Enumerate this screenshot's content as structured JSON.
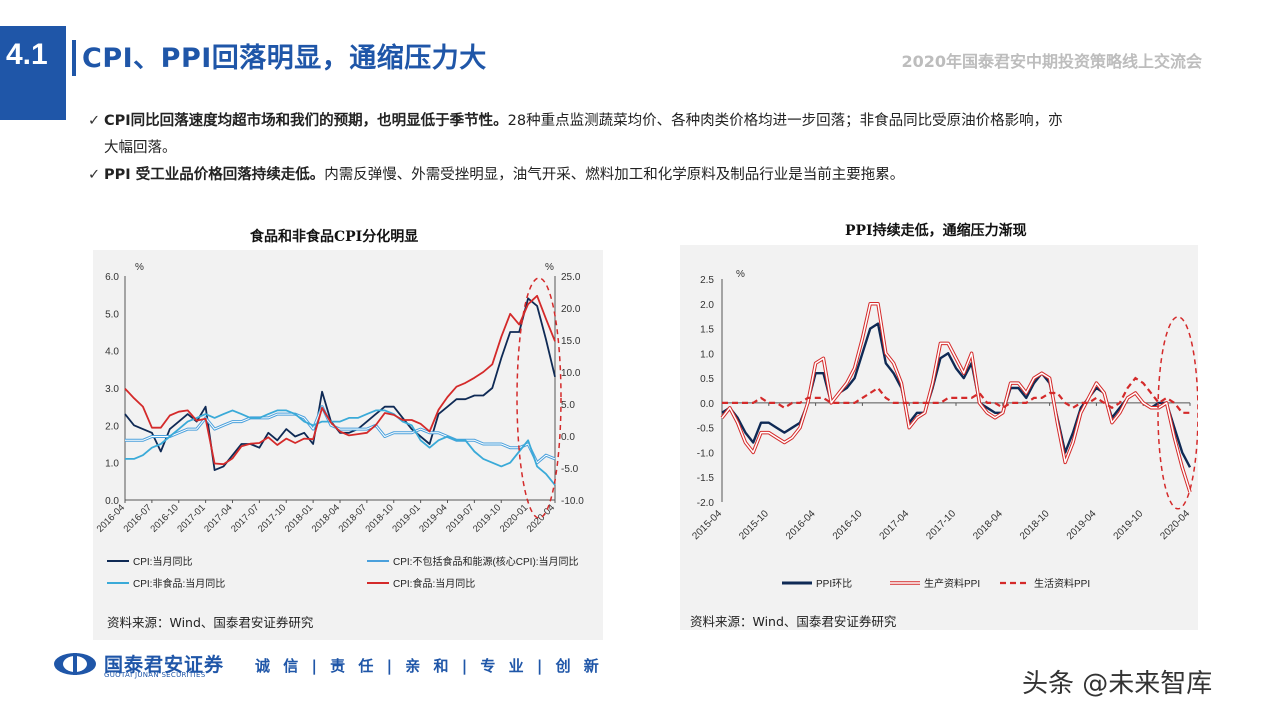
{
  "header": {
    "section_number": "4.1",
    "title": "CPI、PPI回落明显，通缩压力大",
    "event": "2020年国泰君安中期投资策略线上交流会"
  },
  "bullets": [
    {
      "check": "✓",
      "bold": "CPI同比回落速度均超市场和我们的预期，也明显低于季节性。",
      "text": "28种重点监测蔬菜均价、各种肉类价格均进一步回落；非食品同比受原油价格影响，亦",
      "text2": "大幅回落。"
    },
    {
      "check": "✓",
      "bold": "PPI 受工业品价格回落持续走低。",
      "text": "内需反弹慢、外需受挫明显，油气开采、燃料加工和化学原料及制品行业是当前主要拖累。"
    }
  ],
  "left_source": "资料来源：Wind、国泰君安证券研究",
  "right_source": "资料来源：Wind、国泰君安证券研究",
  "footer": {
    "brand": "国泰君安证券",
    "brand_en": "GUOTAI JUNAN SECURITIES",
    "motto": "诚 信 | 责 任 | 亲 和 | 专 业 | 创 新",
    "watermark": "头条 @未来智库"
  },
  "colors": {
    "brand": "#1f56a8",
    "navy": "#0f2a55",
    "red": "#d42a2a",
    "blue": "#3aaad8",
    "lightblue": "#4aa0dc"
  },
  "chart_data": [
    {
      "type": "line",
      "title": "食品和非食品CPI分化明显",
      "left_unit": "%",
      "right_unit": "%",
      "ylim_left": [
        0,
        6
      ],
      "ylim_right": [
        -10,
        25
      ],
      "yticks_left": [
        "0.0",
        "1.0",
        "2.0",
        "3.0",
        "4.0",
        "5.0",
        "6.0"
      ],
      "yticks_right": [
        "-10.0",
        "-5.0",
        "0.0",
        "5.0",
        "10.0",
        "15.0",
        "20.0",
        "25.0"
      ],
      "x_tick_labels": [
        "2016-04",
        "2016-07",
        "2016-10",
        "2017-01",
        "2017-04",
        "2017-07",
        "2017-10",
        "2018-01",
        "2018-04",
        "2018-07",
        "2018-10",
        "2019-01",
        "2019-04",
        "2019-07",
        "2019-10",
        "2020-01",
        "2020-04"
      ],
      "x": [
        "2016-04",
        "2016-05",
        "2016-06",
        "2016-07",
        "2016-08",
        "2016-09",
        "2016-10",
        "2016-11",
        "2016-12",
        "2017-01",
        "2017-02",
        "2017-03",
        "2017-04",
        "2017-05",
        "2017-06",
        "2017-07",
        "2017-08",
        "2017-09",
        "2017-10",
        "2017-11",
        "2017-12",
        "2018-01",
        "2018-02",
        "2018-03",
        "2018-04",
        "2018-05",
        "2018-06",
        "2018-07",
        "2018-08",
        "2018-09",
        "2018-10",
        "2018-11",
        "2018-12",
        "2019-01",
        "2019-02",
        "2019-03",
        "2019-04",
        "2019-05",
        "2019-06",
        "2019-07",
        "2019-08",
        "2019-09",
        "2019-10",
        "2019-11",
        "2019-12",
        "2020-01",
        "2020-02",
        "2020-03",
        "2020-04"
      ],
      "series": [
        {
          "name": "CPI:当月同比",
          "axis": "left",
          "color": "#0f2a55",
          "values": [
            2.3,
            2.0,
            1.9,
            1.8,
            1.3,
            1.9,
            2.1,
            2.3,
            2.1,
            2.5,
            0.8,
            0.9,
            1.2,
            1.5,
            1.5,
            1.4,
            1.8,
            1.6,
            1.9,
            1.7,
            1.8,
            1.5,
            2.9,
            2.1,
            1.8,
            1.8,
            1.9,
            2.1,
            2.3,
            2.5,
            2.5,
            2.2,
            1.9,
            1.7,
            1.5,
            2.3,
            2.5,
            2.7,
            2.7,
            2.8,
            2.8,
            3.0,
            3.8,
            4.5,
            4.5,
            5.4,
            5.2,
            4.3,
            3.3
          ]
        },
        {
          "name": "CPI:不包括食品和能源(核心CPI):当月同比",
          "axis": "left",
          "color": "#4aa0dc",
          "values": [
            1.6,
            1.6,
            1.6,
            1.7,
            1.7,
            1.7,
            1.8,
            1.9,
            1.9,
            2.2,
            1.9,
            2.0,
            2.1,
            2.1,
            2.2,
            2.2,
            2.2,
            2.3,
            2.3,
            2.3,
            2.2,
            1.9,
            2.5,
            2.0,
            1.9,
            1.9,
            1.9,
            1.9,
            2.0,
            1.7,
            1.8,
            1.8,
            1.8,
            1.9,
            1.8,
            1.8,
            1.7,
            1.6,
            1.6,
            1.6,
            1.5,
            1.5,
            1.5,
            1.4,
            1.4,
            1.5,
            1.0,
            1.2,
            1.1
          ]
        },
        {
          "name": "CPI:非食品:当月同比",
          "axis": "left",
          "color": "#3aaad8",
          "values": [
            1.1,
            1.1,
            1.2,
            1.4,
            1.5,
            1.7,
            1.9,
            2.1,
            2.2,
            2.3,
            2.2,
            2.3,
            2.4,
            2.3,
            2.2,
            2.2,
            2.3,
            2.4,
            2.4,
            2.3,
            2.1,
            2.0,
            2.1,
            2.1,
            2.1,
            2.2,
            2.2,
            2.3,
            2.4,
            2.4,
            2.3,
            2.1,
            2.0,
            1.6,
            1.4,
            1.6,
            1.7,
            1.6,
            1.6,
            1.3,
            1.1,
            1.0,
            0.9,
            1.0,
            1.3,
            1.6,
            0.9,
            0.7,
            0.4
          ]
        },
        {
          "name": "CPI:食品:当月同比",
          "axis": "right",
          "color": "#d42a2a",
          "values": [
            7.4,
            5.9,
            4.6,
            1.3,
            1.3,
            3.2,
            3.8,
            4.0,
            2.4,
            2.7,
            -4.3,
            -4.4,
            -3.5,
            -1.6,
            -1.2,
            -1.1,
            -0.2,
            -1.4,
            -0.4,
            -1.1,
            -0.4,
            -0.5,
            4.4,
            2.1,
            0.7,
            0.1,
            0.3,
            0.5,
            1.7,
            3.6,
            3.3,
            2.5,
            2.5,
            1.9,
            0.7,
            4.1,
            6.1,
            7.7,
            8.3,
            9.1,
            10.0,
            11.2,
            15.5,
            19.1,
            17.4,
            20.6,
            21.9,
            18.3,
            14.8
          ]
        }
      ]
    },
    {
      "type": "line",
      "title": "PPI持续走低，通缩压力渐现",
      "unit": "%",
      "ylim": [
        -2.0,
        2.5
      ],
      "yticks": [
        "-2.0",
        "-1.5",
        "-1.0",
        "-0.5",
        "0.0",
        "0.5",
        "1.0",
        "1.5",
        "2.0",
        "2.5"
      ],
      "x_tick_labels": [
        "2015-04",
        "2015-10",
        "2016-04",
        "2016-10",
        "2017-04",
        "2017-10",
        "2018-04",
        "2018-10",
        "2019-04",
        "2019-10",
        "2020-04"
      ],
      "x": [
        "2015-04",
        "2015-05",
        "2015-06",
        "2015-07",
        "2015-08",
        "2015-09",
        "2015-10",
        "2015-11",
        "2015-12",
        "2016-01",
        "2016-02",
        "2016-03",
        "2016-04",
        "2016-05",
        "2016-06",
        "2016-07",
        "2016-08",
        "2016-09",
        "2016-10",
        "2016-11",
        "2016-12",
        "2017-01",
        "2017-02",
        "2017-03",
        "2017-04",
        "2017-05",
        "2017-06",
        "2017-07",
        "2017-08",
        "2017-09",
        "2017-10",
        "2017-11",
        "2017-12",
        "2018-01",
        "2018-02",
        "2018-03",
        "2018-04",
        "2018-05",
        "2018-06",
        "2018-07",
        "2018-08",
        "2018-09",
        "2018-10",
        "2018-11",
        "2018-12",
        "2019-01",
        "2019-02",
        "2019-03",
        "2019-04",
        "2019-05",
        "2019-06",
        "2019-07",
        "2019-08",
        "2019-09",
        "2019-10",
        "2019-11",
        "2019-12",
        "2020-01",
        "2020-02",
        "2020-03",
        "2020-04"
      ],
      "series": [
        {
          "name": "PPI环比",
          "color": "#0f2a55",
          "style": "solid-thick",
          "values": [
            -0.2,
            -0.1,
            -0.3,
            -0.6,
            -0.8,
            -0.4,
            -0.4,
            -0.5,
            -0.6,
            -0.5,
            -0.4,
            0.0,
            0.6,
            0.6,
            0.0,
            0.2,
            0.3,
            0.5,
            1.0,
            1.5,
            1.6,
            0.8,
            0.6,
            0.3,
            -0.4,
            -0.2,
            -0.2,
            0.3,
            0.9,
            1.0,
            0.7,
            0.5,
            0.8,
            0.0,
            -0.1,
            -0.2,
            -0.2,
            0.3,
            0.3,
            0.1,
            0.4,
            0.6,
            0.4,
            -0.3,
            -1.0,
            -0.6,
            -0.1,
            0.1,
            0.3,
            0.2,
            -0.3,
            -0.1,
            0.1,
            0.2,
            0.0,
            -0.1,
            0.0,
            0.0,
            -0.5,
            -1.0,
            -1.3
          ]
        },
        {
          "name": "生产资料PPI",
          "color": "#d42a2a",
          "style": "double",
          "values": [
            -0.3,
            -0.1,
            -0.4,
            -0.8,
            -1.0,
            -0.6,
            -0.6,
            -0.7,
            -0.8,
            -0.7,
            -0.5,
            0.0,
            0.8,
            0.9,
            0.0,
            0.2,
            0.4,
            0.7,
            1.3,
            2.0,
            2.0,
            1.0,
            0.8,
            0.4,
            -0.5,
            -0.3,
            -0.2,
            0.4,
            1.2,
            1.2,
            0.9,
            0.6,
            1.0,
            0.0,
            -0.2,
            -0.3,
            -0.2,
            0.4,
            0.4,
            0.2,
            0.5,
            0.6,
            0.5,
            -0.4,
            -1.2,
            -0.8,
            -0.2,
            0.1,
            0.4,
            0.2,
            -0.4,
            -0.2,
            0.1,
            0.2,
            0.0,
            -0.1,
            -0.1,
            0.0,
            -0.7,
            -1.3,
            -1.8
          ]
        },
        {
          "name": "生活资料PPI",
          "color": "#d42a2a",
          "style": "dashed",
          "values": [
            0.0,
            0.0,
            0.0,
            0.0,
            0.0,
            0.1,
            0.0,
            0.0,
            -0.1,
            0.0,
            0.0,
            0.1,
            0.1,
            0.1,
            0.0,
            0.0,
            0.0,
            0.0,
            0.1,
            0.2,
            0.3,
            0.1,
            0.0,
            0.0,
            0.0,
            0.0,
            0.0,
            0.0,
            0.0,
            0.1,
            0.1,
            0.1,
            0.1,
            0.2,
            0.0,
            0.0,
            -0.1,
            0.0,
            0.0,
            0.0,
            0.1,
            0.1,
            0.2,
            0.2,
            0.0,
            -0.1,
            0.0,
            0.0,
            0.1,
            0.0,
            -0.1,
            0.0,
            0.3,
            0.5,
            0.4,
            0.2,
            0.0,
            0.1,
            0.0,
            -0.2,
            -0.2
          ]
        }
      ]
    }
  ]
}
